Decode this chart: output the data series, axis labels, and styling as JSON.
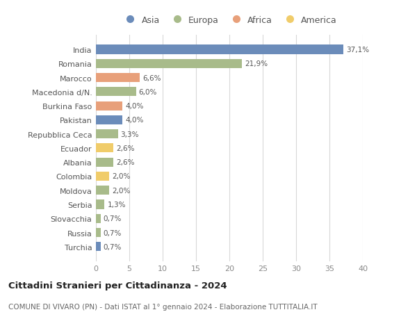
{
  "categories": [
    "India",
    "Romania",
    "Marocco",
    "Macedonia d/N.",
    "Burkina Faso",
    "Pakistan",
    "Repubblica Ceca",
    "Ecuador",
    "Albania",
    "Colombia",
    "Moldova",
    "Serbia",
    "Slovacchia",
    "Russia",
    "Turchia"
  ],
  "values": [
    37.1,
    21.9,
    6.6,
    6.0,
    4.0,
    4.0,
    3.3,
    2.6,
    2.6,
    2.0,
    2.0,
    1.3,
    0.7,
    0.7,
    0.7
  ],
  "labels": [
    "37,1%",
    "21,9%",
    "6,6%",
    "6,0%",
    "4,0%",
    "4,0%",
    "3,3%",
    "2,6%",
    "2,6%",
    "2,0%",
    "2,0%",
    "1,3%",
    "0,7%",
    "0,7%",
    "0,7%"
  ],
  "continents": [
    "Asia",
    "Europa",
    "Africa",
    "Europa",
    "Africa",
    "Asia",
    "Europa",
    "America",
    "Europa",
    "America",
    "Europa",
    "Europa",
    "Europa",
    "Europa",
    "Asia"
  ],
  "continent_colors": {
    "Asia": "#6b8cba",
    "Europa": "#a8bb8a",
    "Africa": "#e8a07a",
    "America": "#f0cc6a"
  },
  "legend_order": [
    "Asia",
    "Europa",
    "Africa",
    "America"
  ],
  "title": "Cittadini Stranieri per Cittadinanza - 2024",
  "subtitle": "COMUNE DI VIVARO (PN) - Dati ISTAT al 1° gennaio 2024 - Elaborazione TUTTITALIA.IT",
  "xlim": [
    0,
    40
  ],
  "xticks": [
    0,
    5,
    10,
    15,
    20,
    25,
    30,
    35,
    40
  ],
  "background_color": "#ffffff",
  "grid_color": "#d8d8d8",
  "bar_height": 0.65
}
